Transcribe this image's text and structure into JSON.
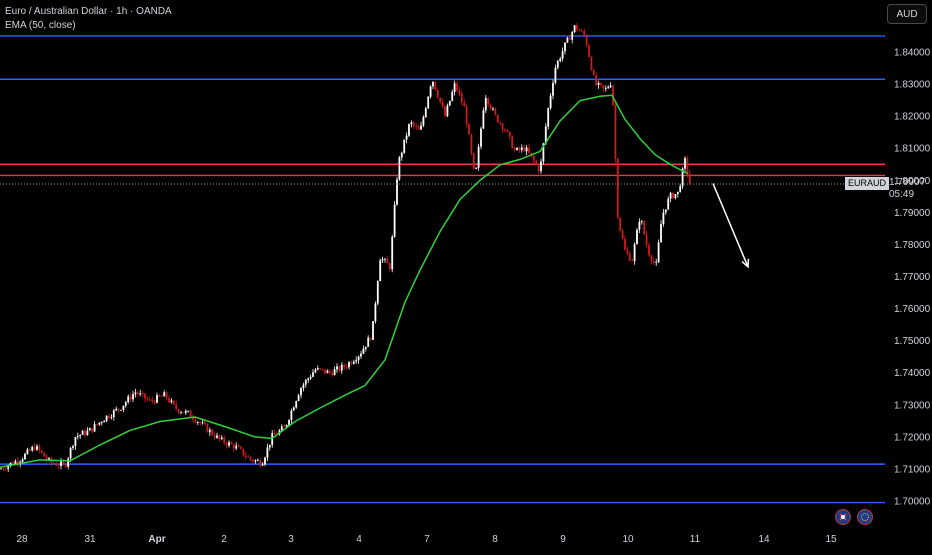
{
  "legend": {
    "title": "Euro / Australian Dollar · 1h · OANDA",
    "indicator": "EMA (50, close)"
  },
  "currency_button": "AUD",
  "symbol_badge": "EURAUD",
  "last_price": "1.79907",
  "countdown": "05:49",
  "colors": {
    "up": "#ffffff",
    "down": "#d11a1a",
    "ema": "#2ed23a",
    "support_resistance_blue": "#2962ff",
    "zone_red": "#f23645",
    "axis_text": "#d1d4dc",
    "background": "#000000"
  },
  "icons": [
    "flag-icon",
    "globe-icon"
  ],
  "chart_data": {
    "type": "candlestick",
    "symbol": "EURAUD",
    "interval": "1h",
    "y_ticks": [
      "1.84000",
      "1.83000",
      "1.82000",
      "1.81000",
      "1.80000",
      "1.79000",
      "1.78000",
      "1.77000",
      "1.76000",
      "1.75000",
      "1.74000",
      "1.73000",
      "1.72000",
      "1.71000",
      "1.70000"
    ],
    "x_ticks": [
      "28",
      "31",
      "Apr",
      "2",
      "3",
      "4",
      "7",
      "8",
      "9",
      "10",
      "11",
      "14",
      "15"
    ],
    "ylim": [
      1.6935,
      1.8505
    ],
    "horizontal_levels": [
      {
        "price": 1.845,
        "color": "blue"
      },
      {
        "price": 1.8315,
        "color": "blue"
      },
      {
        "price": 1.805,
        "color": "red"
      },
      {
        "price": 1.8015,
        "color": "red"
      },
      {
        "price": 1.7115,
        "color": "blue"
      },
      {
        "price": 1.6995,
        "color": "blue"
      }
    ],
    "ema50": [
      [
        0,
        1.7105
      ],
      [
        40,
        1.7128
      ],
      [
        70,
        1.7125
      ],
      [
        100,
        1.7175
      ],
      [
        130,
        1.722
      ],
      [
        160,
        1.7248
      ],
      [
        195,
        1.7262
      ],
      [
        225,
        1.7232
      ],
      [
        255,
        1.72
      ],
      [
        272,
        1.7195
      ],
      [
        295,
        1.7248
      ],
      [
        320,
        1.729
      ],
      [
        345,
        1.733
      ],
      [
        365,
        1.736
      ],
      [
        385,
        1.744
      ],
      [
        405,
        1.762
      ],
      [
        420,
        1.772
      ],
      [
        440,
        1.784
      ],
      [
        460,
        1.794
      ],
      [
        480,
        1.8
      ],
      [
        500,
        1.8048
      ],
      [
        520,
        1.8065
      ],
      [
        540,
        1.809
      ],
      [
        560,
        1.8185
      ],
      [
        580,
        1.8248
      ],
      [
        600,
        1.8262
      ],
      [
        612,
        1.8265
      ],
      [
        625,
        1.819
      ],
      [
        640,
        1.813
      ],
      [
        655,
        1.808
      ],
      [
        670,
        1.805
      ],
      [
        688,
        1.802
      ]
    ],
    "close_path": [
      [
        0,
        1.71
      ],
      [
        20,
        1.713
      ],
      [
        35,
        1.717
      ],
      [
        50,
        1.712
      ],
      [
        65,
        1.711
      ],
      [
        75,
        1.72
      ],
      [
        90,
        1.722
      ],
      [
        105,
        1.726
      ],
      [
        120,
        1.729
      ],
      [
        135,
        1.734
      ],
      [
        150,
        1.731
      ],
      [
        165,
        1.733
      ],
      [
        175,
        1.729
      ],
      [
        190,
        1.727
      ],
      [
        205,
        1.723
      ],
      [
        220,
        1.719
      ],
      [
        235,
        1.717
      ],
      [
        250,
        1.713
      ],
      [
        262,
        1.712
      ],
      [
        272,
        1.72
      ],
      [
        285,
        1.723
      ],
      [
        300,
        1.735
      ],
      [
        315,
        1.741
      ],
      [
        330,
        1.74
      ],
      [
        345,
        1.742
      ],
      [
        360,
        1.746
      ],
      [
        372,
        1.752
      ],
      [
        380,
        1.776
      ],
      [
        390,
        1.773
      ],
      [
        398,
        1.805
      ],
      [
        410,
        1.818
      ],
      [
        420,
        1.815
      ],
      [
        432,
        1.832
      ],
      [
        445,
        1.82
      ],
      [
        455,
        1.83
      ],
      [
        465,
        1.822
      ],
      [
        475,
        1.8
      ],
      [
        485,
        1.827
      ],
      [
        495,
        1.82
      ],
      [
        505,
        1.816
      ],
      [
        515,
        1.809
      ],
      [
        525,
        1.81
      ],
      [
        540,
        1.803
      ],
      [
        548,
        1.822
      ],
      [
        555,
        1.835
      ],
      [
        565,
        1.842
      ],
      [
        575,
        1.848
      ],
      [
        585,
        1.845
      ],
      [
        595,
        1.83
      ],
      [
        605,
        1.828
      ],
      [
        612,
        1.831
      ],
      [
        618,
        1.788
      ],
      [
        625,
        1.778
      ],
      [
        632,
        1.775
      ],
      [
        640,
        1.789
      ],
      [
        648,
        1.778
      ],
      [
        656,
        1.773
      ],
      [
        662,
        1.789
      ],
      [
        670,
        1.795
      ],
      [
        678,
        1.796
      ],
      [
        685,
        1.806
      ],
      [
        690,
        1.799
      ]
    ],
    "forecast_arrow": {
      "from": [
        713,
        1.799
      ],
      "to": [
        748,
        1.773
      ]
    }
  }
}
